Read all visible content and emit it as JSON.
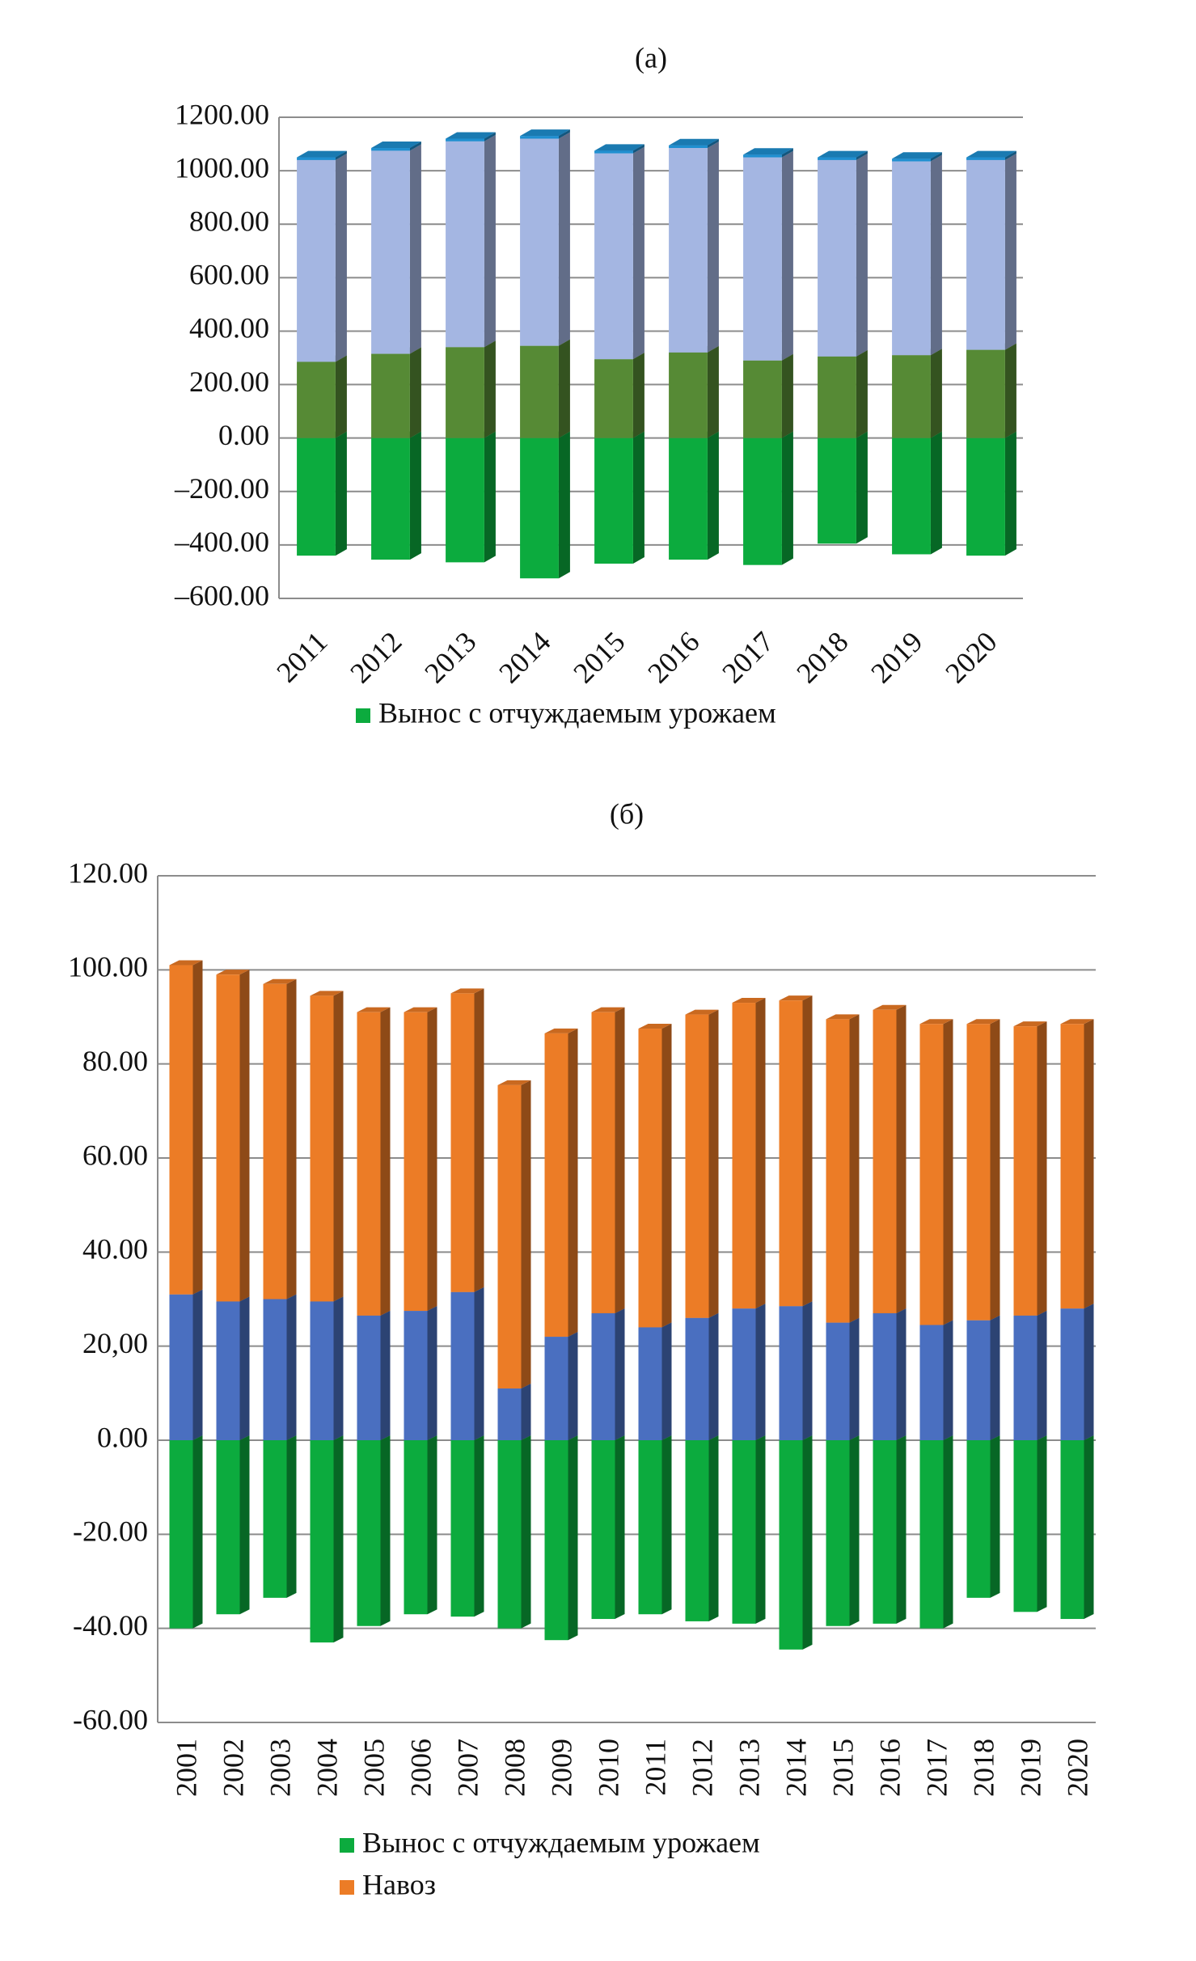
{
  "chart_data": [
    {
      "type": "bar",
      "stacked": true,
      "title": "(а)",
      "categories": [
        "2011",
        "2012",
        "2013",
        "2014",
        "2015",
        "2016",
        "2017",
        "2018",
        "2019",
        "2020"
      ],
      "series": [
        {
          "name": "Вынос с отчуждаемым урожаем",
          "color": "#0cab3e",
          "values": [
            -440,
            -455,
            -465,
            -525,
            -470,
            -455,
            -475,
            -395,
            -435,
            -440
          ]
        },
        {
          "color": "#568a35",
          "values": [
            285,
            315,
            340,
            345,
            295,
            320,
            290,
            305,
            310,
            330
          ]
        },
        {
          "color": "#a4b6e2",
          "values": [
            755,
            760,
            770,
            775,
            770,
            765,
            760,
            735,
            725,
            710
          ]
        },
        {
          "color": "#1f8fd0",
          "values": [
            10,
            10,
            10,
            10,
            10,
            10,
            10,
            10,
            10,
            10
          ]
        }
      ],
      "ylim": [
        -600,
        1200
      ],
      "yticks": [
        {
          "value": -600,
          "label": "–600.00"
        },
        {
          "value": -400,
          "label": "–400.00"
        },
        {
          "value": -200,
          "label": "–200.00"
        },
        {
          "value": 0,
          "label": "0.00"
        },
        {
          "value": 200,
          "label": "200.00"
        },
        {
          "value": 400,
          "label": "400.00"
        },
        {
          "value": 600,
          "label": "600.00"
        },
        {
          "value": 800,
          "label": "800.00"
        },
        {
          "value": 1000,
          "label": "1000.00"
        },
        {
          "value": 1200,
          "label": "1200.00"
        }
      ],
      "grid": true
    },
    {
      "type": "bar",
      "stacked": true,
      "title": "(б)",
      "categories": [
        "2001",
        "2002",
        "2003",
        "2004",
        "2005",
        "2006",
        "2007",
        "2008",
        "2009",
        "2010",
        "2011",
        "2012",
        "2013",
        "2014",
        "2015",
        "2016",
        "2017",
        "2018",
        "2019",
        "2020"
      ],
      "series": [
        {
          "name": "Вынос с отчуждаемым урожаем",
          "color": "#0cab3e",
          "values": [
            -40,
            -37,
            -33.5,
            -43,
            -39.5,
            -37,
            -37.5,
            -40,
            -42.5,
            -38,
            -37,
            -38.5,
            -39,
            -44.5,
            -39.5,
            -39,
            -40,
            -33.5,
            -36.5,
            -38
          ]
        },
        {
          "color": "#4a6fc0",
          "values": [
            31,
            29.5,
            30,
            29.5,
            26.5,
            27.5,
            31.5,
            11,
            22,
            27,
            24,
            26,
            28,
            28.5,
            25,
            27,
            24.5,
            25.5,
            26.5,
            28
          ]
        },
        {
          "name": "Навоз",
          "color": "#ec7c26",
          "values": [
            70,
            69.5,
            67,
            65,
            64.5,
            63.5,
            63.5,
            64.5,
            64.5,
            64,
            63.5,
            64.5,
            65,
            65,
            64.5,
            64.5,
            64,
            63,
            61.5,
            60.5
          ]
        }
      ],
      "ylim": [
        -60,
        120
      ],
      "yticks": [
        {
          "value": -60,
          "label": "-60.00"
        },
        {
          "value": -40,
          "label": "-40.00"
        },
        {
          "value": -20,
          "label": "-20.00"
        },
        {
          "value": 0,
          "label": "0.00"
        },
        {
          "value": 20,
          "label": "20,00"
        },
        {
          "value": 40,
          "label": "40.00"
        },
        {
          "value": 60,
          "label": "60.00"
        },
        {
          "value": 80,
          "label": "80.00"
        },
        {
          "value": 100,
          "label": "100.00"
        },
        {
          "value": 120,
          "label": "120.00"
        }
      ],
      "grid": true
    }
  ]
}
